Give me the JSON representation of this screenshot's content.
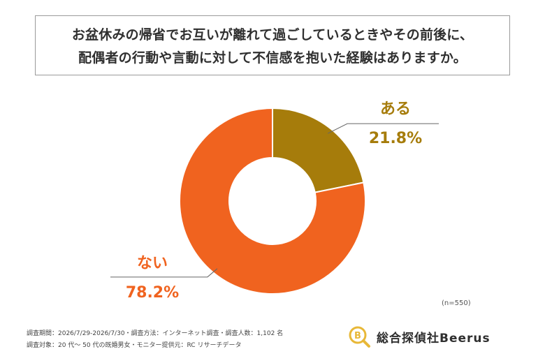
{
  "title": {
    "line1": "お盆休みの帰省でお互いが離れて過ごしているときやその前後に、",
    "line2": "配偶者の行動や言動に対して不信感を抱いた経験はありますか。"
  },
  "chart_data": {
    "type": "pie",
    "donut": true,
    "slices": [
      {
        "label": "ある",
        "value": 21.8,
        "display": "21.8%",
        "color": "#a67c0b"
      },
      {
        "label": "ない",
        "value": 78.2,
        "display": "78.2%",
        "color": "#f0631f"
      }
    ],
    "sample_note": "(n=550)"
  },
  "footnotes": {
    "line1": "調査期間：2026/7/29-2026/7/30・調査方法：インターネット調査・調査人数：1,102 名",
    "line2": "調査対象：20 代〜 50 代の既婚男女・モニター提供元：RC リサーチデータ"
  },
  "logo": {
    "text": "総合探偵社Beerus",
    "accent": "#e8b838"
  }
}
